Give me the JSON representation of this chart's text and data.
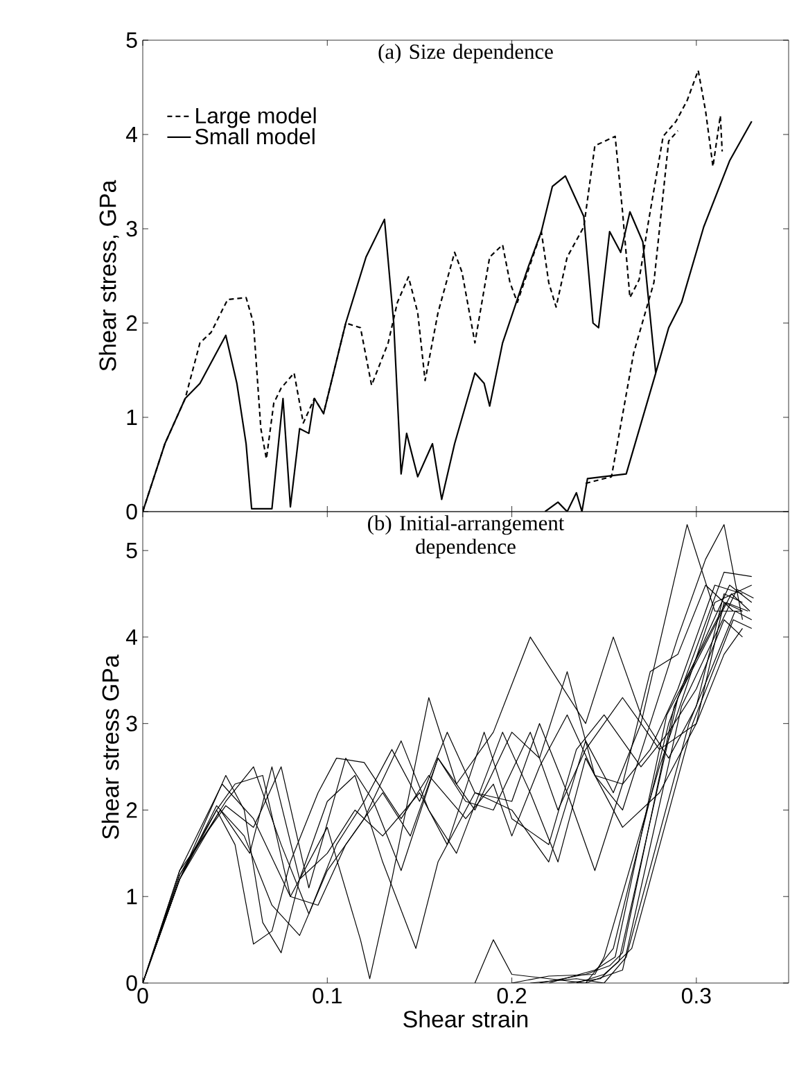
{
  "chart_data": [
    {
      "type": "line",
      "title": "(a) Size dependence",
      "ylabel": "Shear stress, GPa",
      "xlim": [
        0,
        0.35
      ],
      "ylim": [
        0,
        5
      ],
      "xticks": [
        0,
        0.1,
        0.2,
        0.3
      ],
      "yticks": [
        0,
        1,
        2,
        3,
        4,
        5
      ],
      "tick_labels": "y",
      "legend": "top left",
      "grid": false,
      "series": [
        {
          "name": "Large model",
          "color": "#000000",
          "line_style": "dashed",
          "x": [
            0,
            0.012,
            0.023,
            0.031,
            0.037,
            0.046,
            0.056,
            0.06,
            0.064,
            0.067,
            0.071,
            0.075,
            0.082,
            0.087,
            0.093,
            0.098,
            0.11,
            0.118,
            0.124,
            0.133,
            0.138,
            0.144,
            0.149,
            0.153,
            0.16,
            0.169,
            0.173,
            0.18,
            0.188,
            0.195,
            0.199,
            0.203,
            0.216,
            0.22,
            0.224,
            0.23,
            0.239,
            0.245,
            0.256,
            0.26,
            0.264,
            0.269,
            0.274,
            0.282,
            0.289,
            0.295,
            0.301,
            0.305,
            0.309,
            0.313,
            0.314,
            null,
            0.24,
            0.254,
            0.266,
            0.277,
            0.285,
            0.29
          ],
          "values": [
            0,
            0.72,
            1.2,
            1.79,
            1.9,
            2.25,
            2.27,
            2.0,
            0.88,
            0.56,
            1.15,
            1.31,
            1.47,
            0.94,
            1.2,
            1.04,
            2.0,
            1.95,
            1.34,
            1.79,
            2.22,
            2.49,
            2.11,
            1.39,
            2.11,
            2.75,
            2.54,
            1.79,
            2.7,
            2.83,
            2.43,
            2.22,
            2.97,
            2.43,
            2.17,
            2.7,
            3.02,
            3.88,
            3.98,
            3.18,
            2.27,
            2.46,
            3.07,
            3.98,
            4.14,
            4.36,
            4.68,
            4.25,
            3.66,
            4.2,
            3.82,
            null,
            0.3,
            0.37,
            1.68,
            2.43,
            3.93,
            4.04
          ]
        },
        {
          "name": "Small model",
          "color": "#000000",
          "line_style": "solid",
          "x": [
            0,
            0.012,
            0.023,
            0.031,
            0.045,
            0.051,
            0.056,
            0.059,
            0.07,
            0.076,
            0.08,
            0.085,
            0.09,
            0.093,
            0.098,
            0.11,
            0.121,
            0.131,
            0.136,
            0.14,
            0.143,
            0.149,
            0.157,
            0.162,
            0.169,
            0.18,
            0.185,
            0.188,
            0.195,
            0.209,
            0.216,
            0.222,
            0.229,
            0.239,
            0.244,
            0.247,
            0.253,
            0.259,
            0.264,
            0.271,
            0.278,
            0.285,
            0.292,
            0.304,
            0.318,
            0.33,
            null,
            0.218,
            0.225,
            0.23,
            0.235,
            0.238,
            0.241,
            0.262,
            0.278
          ],
          "values": [
            0,
            0.72,
            1.2,
            1.36,
            1.87,
            1.36,
            0.72,
            0.03,
            0.03,
            1.2,
            0.05,
            0.88,
            0.83,
            1.2,
            1.04,
            2.0,
            2.7,
            3.1,
            2.0,
            0.4,
            0.83,
            0.37,
            0.72,
            0.13,
            0.72,
            1.47,
            1.36,
            1.12,
            1.79,
            2.6,
            2.97,
            3.45,
            3.56,
            3.13,
            2.0,
            1.95,
            2.97,
            2.75,
            3.18,
            2.86,
            1.47,
            1.95,
            2.22,
            3.02,
            3.72,
            4.14,
            null,
            0,
            0.1,
            0,
            0.2,
            0,
            0.35,
            0.4,
            1.47
          ]
        }
      ]
    },
    {
      "type": "line",
      "title": "(b) Initial-arrangement dependence",
      "xlabel": "Shear strain",
      "ylabel": "Shear stress  GPa",
      "xlim": [
        0,
        0.35
      ],
      "ylim": [
        0,
        5.45
      ],
      "xticks": [
        0,
        0.1,
        0.2,
        0.3
      ],
      "yticks": [
        0,
        1,
        2,
        3,
        4,
        5
      ],
      "grid": false,
      "series": [
        {
          "color": "#000000",
          "x": [
            0,
            0.02,
            0.04,
            0.05,
            0.06,
            0.07,
            0.08,
            0.095,
            0.105,
            0.12,
            0.14,
            0.155,
            0.175,
            0.19,
            0.2,
            0.215,
            0.23,
            0.245,
            0.26,
            0.275,
            0.29,
            0.305,
            0.315,
            0.325
          ],
          "values": [
            0,
            1.25,
            2.0,
            1.6,
            0.45,
            0.6,
            1.4,
            2.2,
            2.6,
            2.55,
            1.9,
            2.4,
            1.9,
            2.3,
            1.7,
            2.5,
            3.1,
            2.4,
            2.0,
            3.0,
            4.0,
            4.9,
            5.3,
            4.2
          ]
        },
        {
          "color": "#000000",
          "x": [
            0,
            0.02,
            0.045,
            0.055,
            0.065,
            0.075,
            0.085,
            0.1,
            0.115,
            0.13,
            0.148,
            0.16,
            0.18,
            0.2,
            0.22,
            0.24,
            0.255,
            0.27,
            0.295,
            0.31,
            0.325
          ],
          "values": [
            0,
            1.2,
            2.4,
            2.0,
            0.7,
            0.35,
            1.2,
            2.1,
            2.4,
            1.4,
            0.4,
            1.4,
            2.2,
            2.0,
            1.4,
            2.8,
            2.2,
            3.0,
            5.3,
            4.3,
            4.3
          ]
        },
        {
          "color": "#000000",
          "x": [
            0,
            0.02,
            0.043,
            0.06,
            0.08,
            0.1,
            0.118,
            0.123,
            0.135,
            0.155,
            0.17,
            0.19,
            0.21,
            0.225,
            0.24,
            0.255,
            0.27,
            0.285,
            0.3,
            0.315,
            0.325
          ],
          "values": [
            0,
            1.3,
            2.3,
            1.9,
            1.0,
            1.8,
            0.5,
            0.05,
            1.2,
            3.3,
            2.3,
            2.9,
            4.0,
            3.5,
            3.0,
            4.0,
            3.1,
            2.6,
            3.2,
            4.5,
            4.4
          ]
        },
        {
          "color": "#000000",
          "x": [
            0,
            0.02,
            0.04,
            0.055,
            0.07,
            0.085,
            0.1,
            0.12,
            0.14,
            0.155,
            0.17,
            0.195,
            0.21,
            0.225,
            0.24,
            0.26,
            0.28,
            0.3,
            0.315,
            0.325
          ],
          "values": [
            0,
            1.2,
            2.05,
            1.7,
            0.9,
            0.55,
            1.3,
            1.9,
            2.8,
            2.0,
            1.5,
            2.9,
            2.2,
            1.4,
            2.6,
            1.8,
            2.2,
            3.0,
            3.8,
            4.1
          ]
        },
        {
          "color": "#000000",
          "x": [
            0,
            0.02,
            0.045,
            0.06,
            0.075,
            0.09,
            0.105,
            0.12,
            0.135,
            0.15,
            0.165,
            0.18,
            0.2,
            0.215,
            0.23,
            0.245,
            0.26,
            0.275,
            0.29,
            0.31,
            0.325
          ],
          "values": [
            0,
            1.25,
            2.1,
            2.5,
            1.6,
            0.8,
            1.6,
            2.1,
            2.7,
            2.1,
            2.9,
            2.2,
            2.1,
            3.0,
            2.2,
            1.3,
            2.3,
            2.7,
            3.4,
            4.6,
            4.5
          ]
        },
        {
          "color": "#000000",
          "x": [
            0,
            0.02,
            0.04,
            0.05,
            0.065,
            0.08,
            0.095,
            0.11,
            0.13,
            0.145,
            0.16,
            0.18,
            0.2,
            0.215,
            0.23,
            0.245,
            0.26,
            0.275,
            0.29,
            0.305,
            0.32
          ],
          "values": [
            0,
            1.2,
            2.0,
            2.3,
            2.4,
            1.0,
            0.9,
            1.6,
            2.2,
            1.7,
            2.6,
            2.0,
            2.9,
            2.6,
            3.6,
            2.4,
            2.3,
            3.6,
            3.8,
            4.6,
            4.3
          ]
        },
        {
          "color": "#000000",
          "x": [
            0,
            0.02,
            0.042,
            0.058,
            0.07,
            0.085,
            0.1,
            0.115,
            0.13,
            0.15,
            0.165,
            0.185,
            0.2,
            0.22,
            0.235,
            0.25,
            0.27,
            0.285,
            0.3,
            0.315,
            0.325
          ],
          "values": [
            0,
            1.2,
            2.0,
            1.5,
            2.5,
            1.2,
            1.5,
            2.0,
            1.7,
            2.2,
            1.6,
            2.9,
            1.9,
            1.6,
            2.7,
            3.1,
            2.5,
            2.9,
            3.4,
            4.2,
            4.0
          ]
        },
        {
          "color": "#000000",
          "x": [
            0,
            0.02,
            0.045,
            0.06,
            0.075,
            0.09,
            0.11,
            0.125,
            0.14,
            0.16,
            0.175,
            0.19,
            0.21,
            0.225,
            0.24,
            0.26,
            0.28,
            0.3,
            0.315,
            0.325
          ],
          "values": [
            0,
            1.3,
            2.05,
            1.8,
            2.5,
            1.1,
            2.6,
            2.1,
            1.3,
            2.6,
            2.1,
            2.0,
            2.9,
            2.0,
            2.7,
            3.3,
            2.7,
            3.0,
            4.4,
            4.3
          ]
        },
        {
          "color": "#000000",
          "x": [
            0.2,
            0.22,
            0.245,
            0.25,
            0.28,
            0.31,
            0.33
          ],
          "values": [
            0,
            0.08,
            0.1,
            0.3,
            2.5,
            4.4,
            4.6
          ]
        },
        {
          "color": "#000000",
          "x": [
            0.18,
            0.19,
            0.2,
            0.24,
            0.255,
            0.285,
            0.315,
            0.33
          ],
          "values": [
            0,
            0.5,
            0.1,
            0,
            0.4,
            3.0,
            4.75,
            4.7
          ]
        },
        {
          "color": "#000000",
          "x": [
            0.24,
            0.26,
            0.292,
            0.322,
            0.331
          ],
          "values": [
            0,
            0.15,
            3.2,
            4.55,
            4.45
          ]
        },
        {
          "color": "#000000",
          "x": [
            0.21,
            0.235,
            0.25,
            0.262,
            0.296,
            0.321,
            0.33
          ],
          "values": [
            0,
            0.05,
            0,
            0.3,
            3.0,
            4.3,
            4.2
          ]
        },
        {
          "color": "#000000",
          "x": [
            0.215,
            0.24,
            0.253,
            0.26,
            0.288,
            0.318,
            0.33
          ],
          "values": [
            0,
            0.1,
            0.2,
            0.35,
            3.2,
            4.6,
            4.4
          ]
        },
        {
          "color": "#000000",
          "x": [
            0.22,
            0.245,
            0.256,
            0.284,
            0.316,
            0.328
          ],
          "values": [
            0,
            0.15,
            0.3,
            3.1,
            4.4,
            4.3
          ]
        },
        {
          "color": "#000000",
          "x": [
            0.23,
            0.248,
            0.265,
            0.298,
            0.32,
            0.33
          ],
          "values": [
            0,
            0.05,
            0.4,
            3.0,
            4.2,
            4.1
          ]
        },
        {
          "color": "#000000",
          "x": [
            0.235,
            0.25,
            0.258,
            0.29,
            0.319,
            0.329
          ],
          "values": [
            0,
            0.1,
            0.25,
            3.3,
            4.5,
            4.3
          ]
        }
      ]
    }
  ]
}
